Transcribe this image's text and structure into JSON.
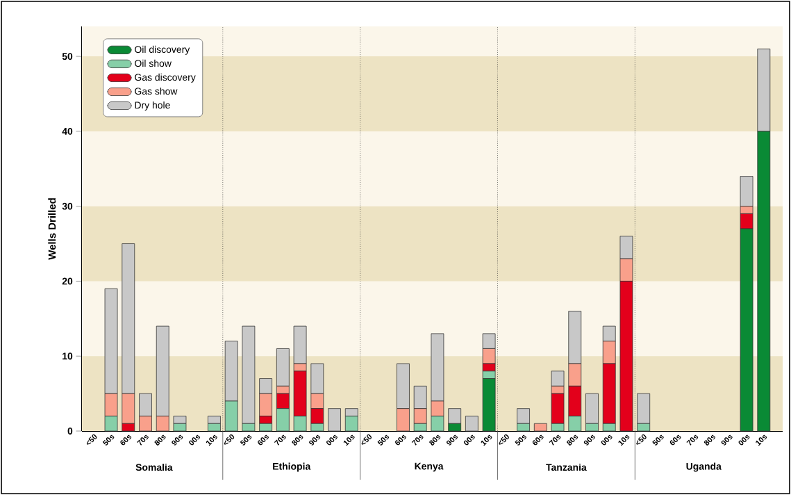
{
  "chart_data": {
    "type": "bar",
    "stacked": true,
    "ylabel": "Wells Drilled",
    "categories": [
      "<50",
      "50s",
      "60s",
      "70s",
      "80s",
      "90s",
      "00s",
      "10s",
      "<50",
      "50s",
      "60s",
      "70s",
      "80s",
      "90s",
      "00s",
      "10s",
      "<50",
      "50s",
      "60s",
      "70s",
      "80s",
      "90s",
      "00s",
      "10s",
      "<50",
      "50s",
      "60s",
      "70s",
      "80s",
      "90s",
      "00s",
      "10s",
      "<50",
      "50s",
      "60s",
      "70s",
      "80s",
      "90s",
      "00s",
      "10s"
    ],
    "annotations": [
      "Somalia",
      "Ethiopia",
      "Kenya",
      "Tanzania",
      "Uganda"
    ],
    "series": [
      {
        "name": "Oil discovery",
        "color": "#0a8a35",
        "values": [
          0,
          0,
          0,
          0,
          0,
          0,
          0,
          0,
          0,
          0,
          0,
          0,
          0,
          0,
          0,
          0,
          0,
          0,
          0,
          0,
          0,
          1,
          0,
          7,
          0,
          0,
          0,
          0,
          0,
          0,
          0,
          0,
          0,
          0,
          0,
          0,
          0,
          0,
          27,
          40
        ]
      },
      {
        "name": "Oil show",
        "color": "#86cfa8",
        "values": [
          0,
          2,
          0,
          0,
          0,
          1,
          0,
          1,
          4,
          1,
          1,
          3,
          2,
          1,
          0,
          2,
          0,
          0,
          0,
          1,
          2,
          0,
          0,
          1,
          0,
          1,
          0,
          1,
          2,
          1,
          1,
          0,
          1,
          0,
          0,
          0,
          0,
          0,
          0,
          0
        ]
      },
      {
        "name": "Gas discovery",
        "color": "#e3001b",
        "values": [
          0,
          0,
          1,
          0,
          0,
          0,
          0,
          0,
          0,
          0,
          1,
          2,
          6,
          2,
          0,
          0,
          0,
          0,
          0,
          0,
          0,
          0,
          0,
          1,
          0,
          0,
          0,
          4,
          4,
          0,
          8,
          20,
          0,
          0,
          0,
          0,
          0,
          0,
          2,
          0
        ]
      },
      {
        "name": "Gas show",
        "color": "#f9a08b",
        "values": [
          0,
          3,
          4,
          2,
          2,
          0,
          0,
          0,
          0,
          0,
          3,
          1,
          1,
          2,
          0,
          0,
          0,
          0,
          3,
          2,
          2,
          0,
          0,
          2,
          0,
          0,
          1,
          1,
          3,
          0,
          3,
          3,
          0,
          0,
          0,
          0,
          0,
          0,
          1,
          0
        ]
      },
      {
        "name": "Dry hole",
        "color": "#c8c8c8",
        "values": [
          0,
          14,
          20,
          3,
          12,
          1,
          0,
          1,
          8,
          13,
          2,
          5,
          5,
          4,
          3,
          1,
          0,
          0,
          6,
          3,
          9,
          2,
          2,
          2,
          0,
          2,
          0,
          2,
          7,
          4,
          2,
          3,
          4,
          0,
          0,
          0,
          0,
          0,
          4,
          11
        ]
      }
    ],
    "ylim": [
      0,
      54
    ],
    "yticks": [
      0,
      10,
      20,
      30,
      40,
      50
    ],
    "bands": [
      {
        "axis": "y",
        "from": 0,
        "to": 10,
        "color": "#ede3c3"
      },
      {
        "axis": "y",
        "from": 20,
        "to": 30,
        "color": "#ede3c3"
      },
      {
        "axis": "y",
        "from": 40,
        "to": 50,
        "color": "#ede3c3"
      }
    ],
    "legend": "top left"
  }
}
